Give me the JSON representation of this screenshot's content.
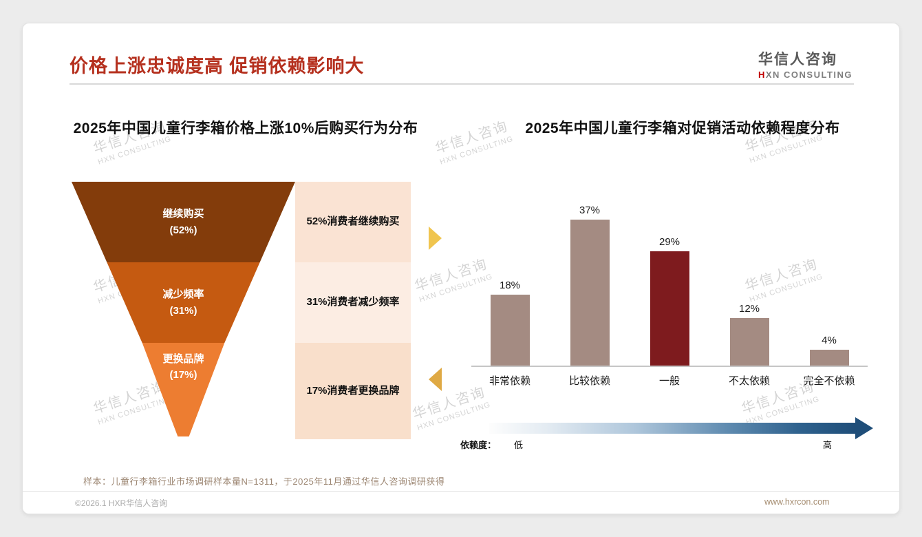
{
  "header": {
    "title": "价格上涨忠诚度高 促销依赖影响大",
    "logo_cn": "华信人咨询",
    "logo_en_h": "H",
    "logo_en_rest": "XN CONSULTING"
  },
  "chart_data": [
    {
      "type": "funnel",
      "title": "2025年中国儿童行李箱价格上涨10%后购买行为分布",
      "categories": [
        "继续购买",
        "减少频率",
        "更换品牌"
      ],
      "values": [
        52,
        31,
        17
      ],
      "value_labels": [
        "(52%)",
        "(31%)",
        "(17%)"
      ],
      "annotations": [
        "52%消费者继续购买",
        "31%消费者减少频率",
        "17%消费者更换品牌"
      ],
      "colors": [
        "#833c0b",
        "#c55a11",
        "#ed7d31"
      ]
    },
    {
      "type": "bar",
      "title": "2025年中国儿童行李箱对促销活动依赖程度分布",
      "categories": [
        "非常依赖",
        "比较依赖",
        "一般",
        "不太依赖",
        "完全不依赖"
      ],
      "values": [
        18,
        37,
        29,
        12,
        4
      ],
      "data_labels": [
        "18%",
        "37%",
        "29%",
        "12%",
        "4%"
      ],
      "highlight_category": "一般",
      "highlight_index": 2,
      "bar_color": "#a48b82",
      "highlight_color": "#7e1b1e",
      "ylim": [
        0,
        40
      ],
      "grid": false,
      "legend": "none",
      "axis_legend": {
        "label": "依赖度：",
        "low": "低",
        "high": "高"
      }
    }
  ],
  "watermark": {
    "line1": "华信人咨询",
    "line2": "HXN CONSULTING"
  },
  "footer": {
    "note": "样本：儿童行李箱行业市场调研样本量N=1311，于2025年11月通过华信人咨询调研获得",
    "left": "©2026.1 HXR华信人咨询",
    "right": "www.hxrcon.com"
  }
}
